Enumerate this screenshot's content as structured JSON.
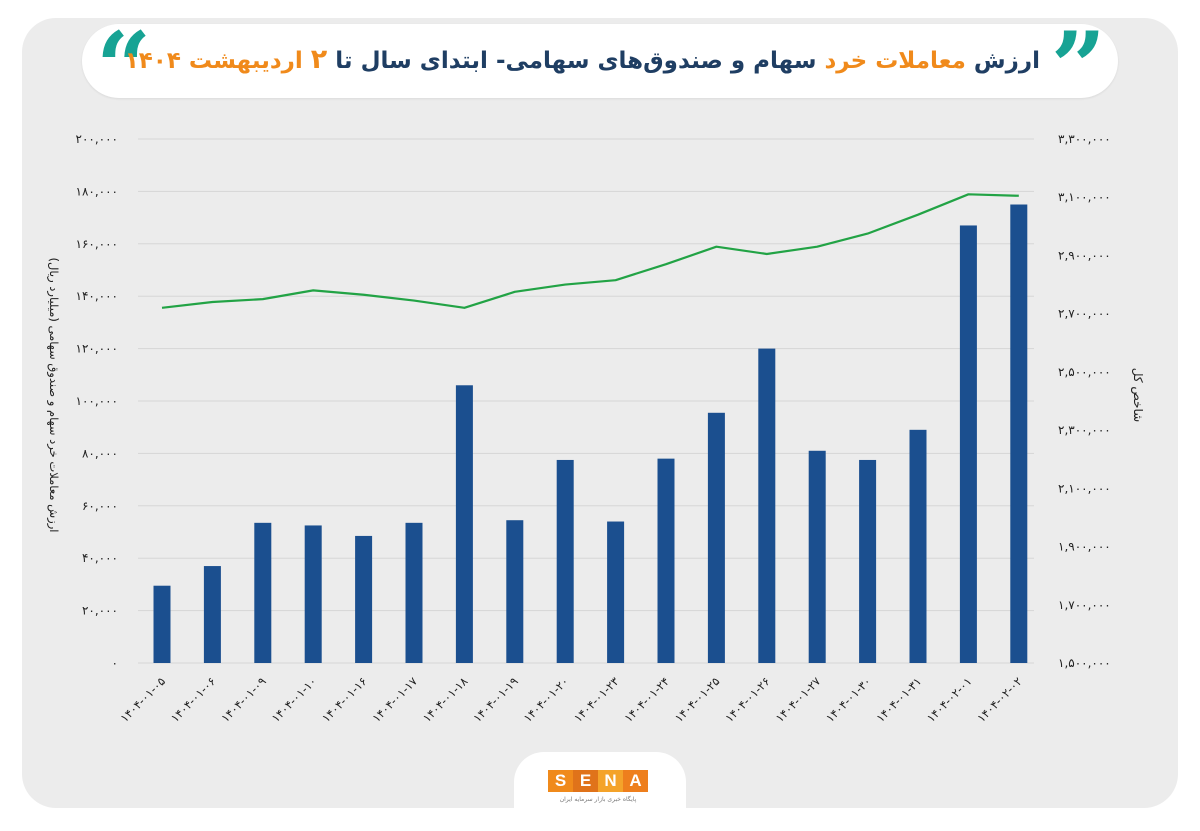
{
  "header": {
    "title_part1": "ارزش ",
    "title_part2": "معاملات خرد",
    "title_part3": " سهام و صندوق‌های سهامی- ابتدای سال تا ",
    "title_part4": "۲",
    "title_part5": " اردیبهشت ۱۴۰۴"
  },
  "chart_data": {
    "type": "bar",
    "categories": [
      "۱۴۰۴-۰۱-۰۵",
      "۱۴۰۴-۰۱-۰۶",
      "۱۴۰۴-۰۱-۰۹",
      "۱۴۰۴-۰۱-۱۰",
      "۱۴۰۴-۰۱-۱۶",
      "۱۴۰۴-۰۱-۱۷",
      "۱۴۰۴-۰۱-۱۸",
      "۱۴۰۴-۰۱-۱۹",
      "۱۴۰۴-۰۱-۲۰",
      "۱۴۰۴-۰۱-۲۳",
      "۱۴۰۴-۰۱-۲۴",
      "۱۴۰۴-۰۱-۲۵",
      "۱۴۰۴-۰۱-۲۶",
      "۱۴۰۴-۰۱-۲۷",
      "۱۴۰۴-۰۱-۳۰",
      "۱۴۰۴-۰۱-۳۱",
      "۱۴۰۴-۰۲-۰۱",
      "۱۴۰۴-۰۲-۰۲"
    ],
    "series": [
      {
        "type": "bar",
        "axis": "left",
        "color": "#1b4f8f",
        "values": [
          29500,
          37000,
          53500,
          52500,
          48500,
          53500,
          106000,
          54500,
          77500,
          54000,
          78000,
          95500,
          120000,
          81000,
          77500,
          89000,
          167000,
          175000
        ]
      },
      {
        "type": "line",
        "axis": "right",
        "color": "#22a345",
        "values": [
          2720000,
          2740000,
          2750000,
          2780000,
          2765000,
          2745000,
          2720000,
          2775000,
          2800000,
          2815000,
          2870000,
          2930000,
          2905000,
          2930000,
          2975000,
          3040000,
          3110000,
          3105000
        ]
      }
    ],
    "ylabel": "ارزش معاملات خرد سهام و صندوق سهامی (میلیارد ریال)",
    "ylabel_right": "شاخص کل",
    "ylim": [
      0,
      200000
    ],
    "ylim_right": [
      1500000,
      3300000
    ],
    "yticks": [
      "۰",
      "۲۰,۰۰۰",
      "۴۰,۰۰۰",
      "۶۰,۰۰۰",
      "۸۰,۰۰۰",
      "۱۰۰,۰۰۰",
      "۱۲۰,۰۰۰",
      "۱۴۰,۰۰۰",
      "۱۶۰,۰۰۰",
      "۱۸۰,۰۰۰",
      "۲۰۰,۰۰۰"
    ],
    "yticks_right": [
      "۱,۵۰۰,۰۰۰",
      "۱,۷۰۰,۰۰۰",
      "۱,۹۰۰,۰۰۰",
      "۲,۱۰۰,۰۰۰",
      "۲,۳۰۰,۰۰۰",
      "۲,۵۰۰,۰۰۰",
      "۲,۷۰۰,۰۰۰",
      "۲,۹۰۰,۰۰۰",
      "۳,۱۰۰,۰۰۰",
      "۳,۳۰۰,۰۰۰"
    ],
    "grid": true
  },
  "footer": {
    "logo_letters": [
      "S",
      "E",
      "N",
      "A"
    ],
    "logo_colors": [
      "#f08a1b",
      "#e0731a",
      "#f4a32a",
      "#ee7f1d"
    ],
    "logo_subtitle": "پایگاه خبری بازار سرمایه ایران"
  }
}
